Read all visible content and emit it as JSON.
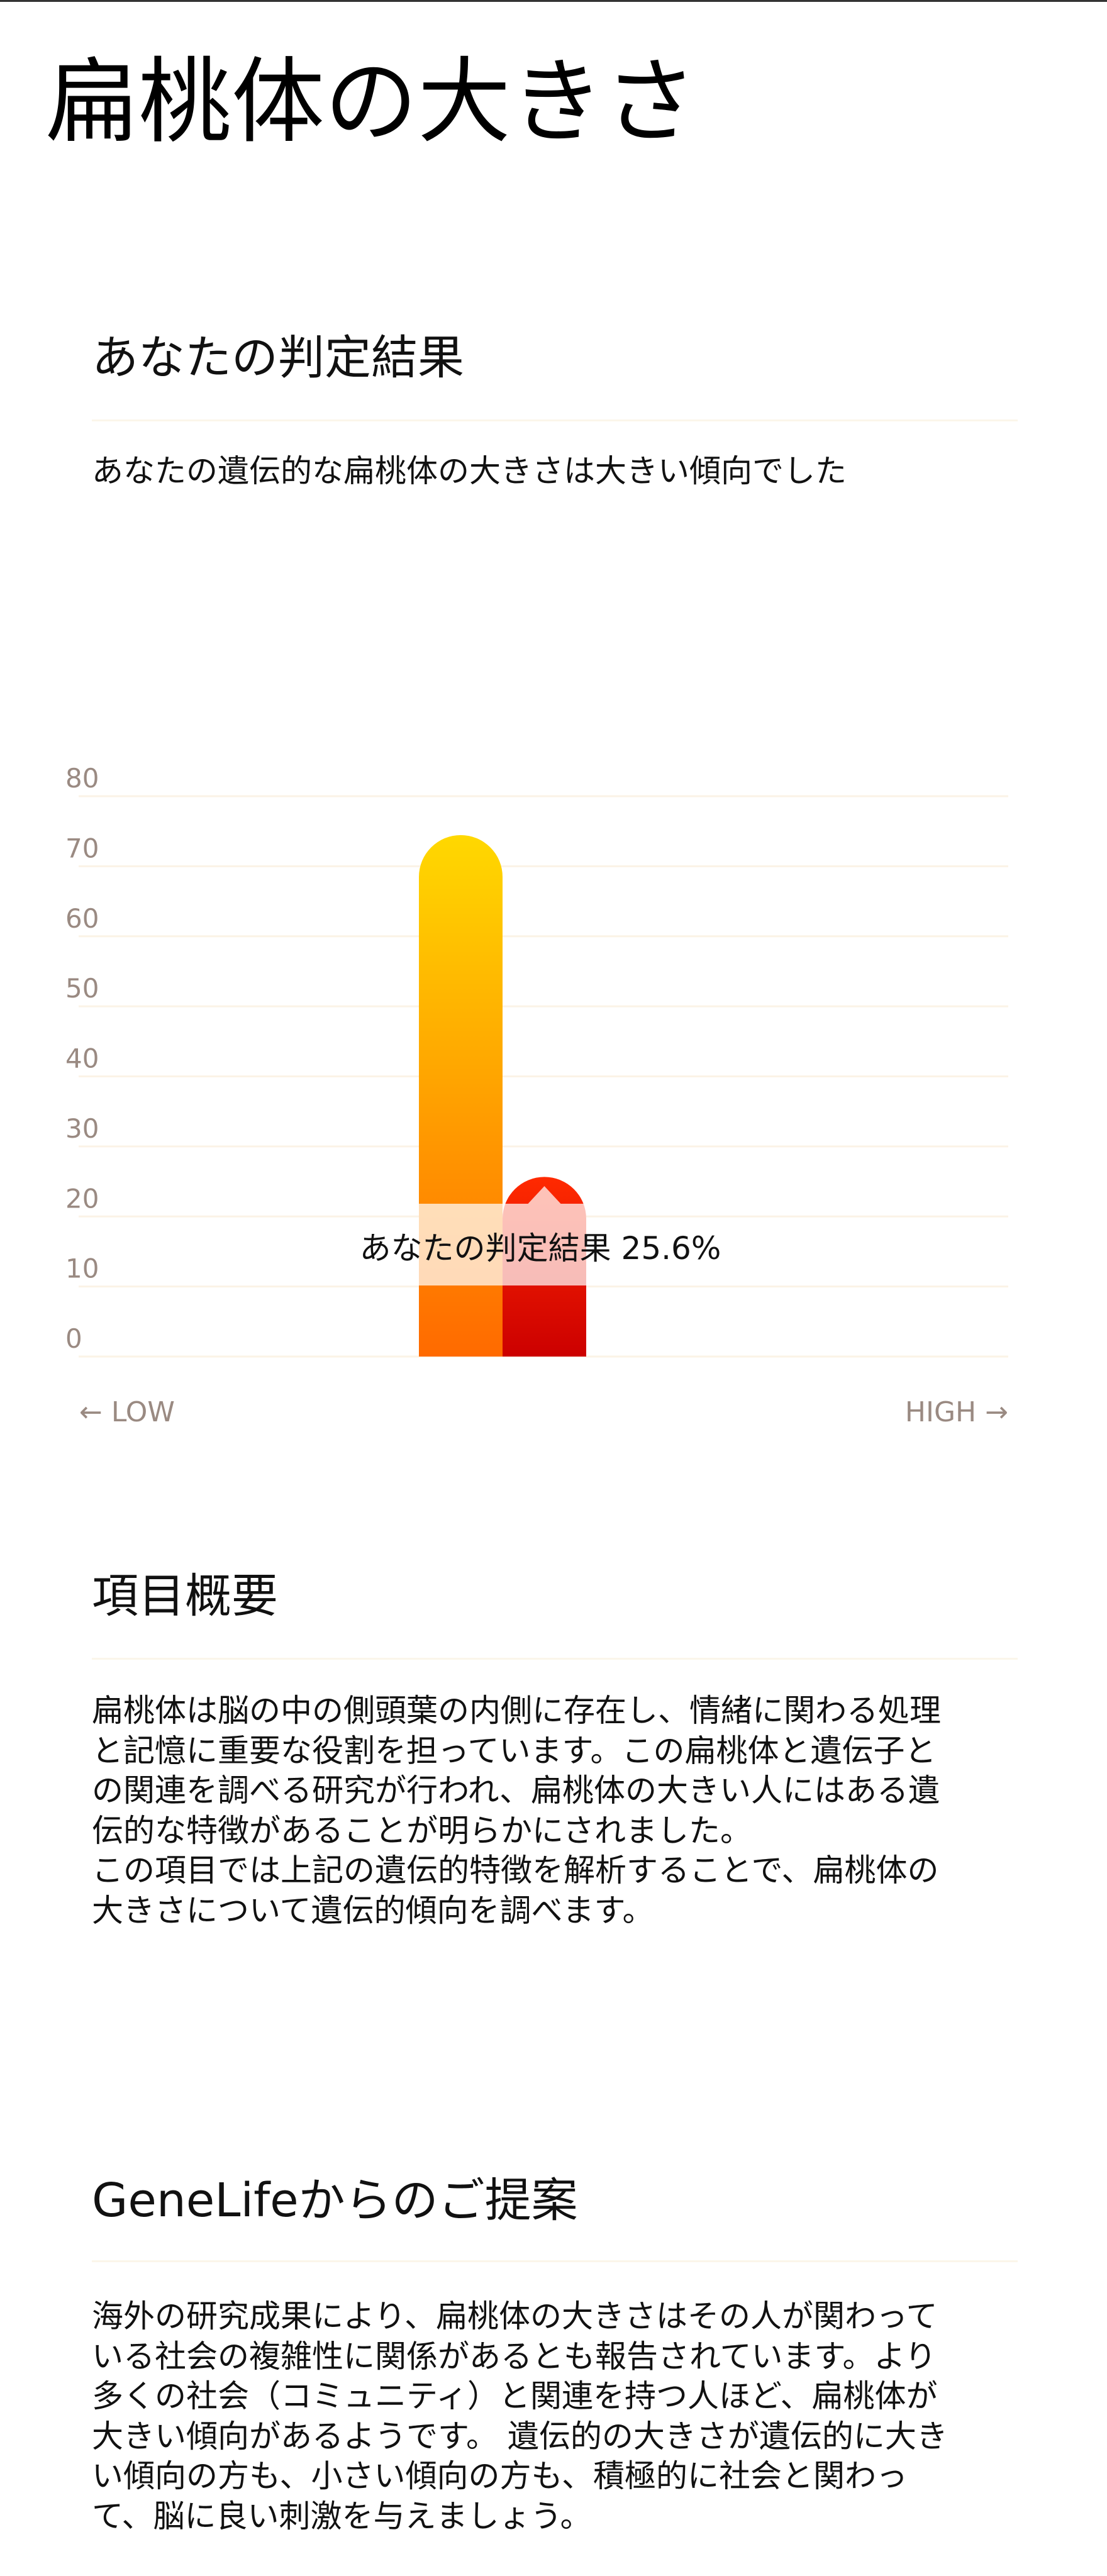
{
  "page": {
    "title": "扁桃体の大きさ"
  },
  "result": {
    "heading": "あなたの判定結果",
    "summary": "あなたの遺伝的な扁桃体の大きさは大きい傾向でした"
  },
  "chart_data": {
    "type": "bar",
    "categories": [
      "LOW",
      "HIGH"
    ],
    "values": [
      74.4,
      25.6
    ],
    "ylim": [
      0,
      80
    ],
    "yticks": [
      0,
      10,
      20,
      30,
      40,
      50,
      60,
      70,
      80
    ],
    "grid": true,
    "highlight_index": 1,
    "annotation": "あなたの判定結果 25.6%",
    "x_low_label": "← LOW",
    "x_high_label": "HIGH →",
    "colors": {
      "bar_low_top": "#FFD800",
      "bar_low_bottom": "#FF6A00",
      "bar_high_top": "#FF2A00",
      "bar_high_bottom": "#CC0000",
      "grid": "#FBF3E6",
      "tick_text": "#9A8A82"
    }
  },
  "overview": {
    "heading": "項目概要",
    "lines": [
      "扁桃体は脳の中の側頭葉の内側に存在し、情緒に関わる処理",
      "と記憶に重要な役割を担っています。この扁桃体と遺伝子と",
      "の関連を調べる研究が行われ、扁桃体の大きい人にはある遺",
      "伝的な特徴があることが明らかにされました。",
      "この項目では上記の遺伝的特徴を解析することで、扁桃体の",
      "大きさについて遺伝的傾向を調べます。"
    ]
  },
  "proposal": {
    "heading": "GeneLifeからのご提案",
    "lines": [
      "海外の研究成果により、扁桃体の大きさはその人が関わって",
      "いる社会の複雑性に関係があるとも報告されています。より",
      "多くの社会（コミュニティ）と関連を持つ人ほど、扁桃体が",
      "大きい傾向があるようです。 遺伝的の大きさが遺伝的に大き",
      "い傾向の方も、小さい傾向の方も、積極的に社会と関わっ",
      "て、脳に良い刺激を与えましょう。"
    ]
  }
}
